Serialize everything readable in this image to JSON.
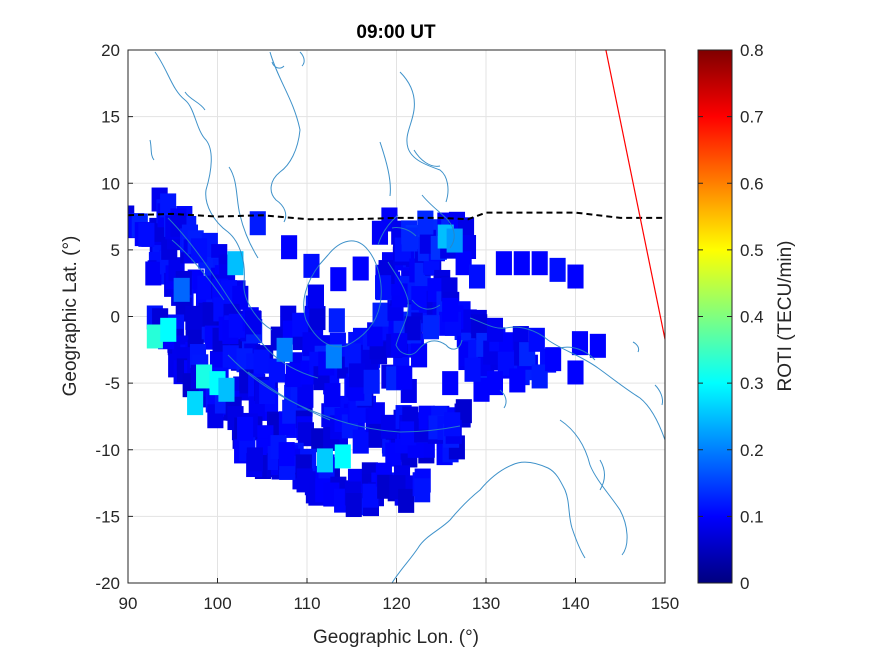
{
  "chart_data": {
    "type": "heatmap",
    "title": "09:00 UT",
    "xlabel": "Geographic Lon. (°)",
    "ylabel": "Geographic Lat. (°)",
    "xlim": [
      90,
      150
    ],
    "ylim": [
      -20,
      20
    ],
    "xticks": [
      "90",
      "100",
      "110",
      "120",
      "130",
      "140",
      "150"
    ],
    "yticks": [
      "20",
      "15",
      "10",
      "5",
      "0",
      "-5",
      "-10",
      "-15",
      "-20"
    ],
    "grid": true,
    "colorbar": {
      "label": "ROTI (TECU/min)",
      "range": [
        0,
        0.8
      ],
      "ticks": [
        "0",
        "0.1",
        "0.2",
        "0.3",
        "0.4",
        "0.5",
        "0.6",
        "0.7",
        "0.8"
      ],
      "colormap": "jet"
    },
    "magnetic_equator": {
      "style": "dashed",
      "color": "#000000",
      "points": [
        [
          90,
          7.6
        ],
        [
          95,
          7.7
        ],
        [
          100,
          7.5
        ],
        [
          105,
          7.6
        ],
        [
          110,
          7.3
        ],
        [
          115,
          7.3
        ],
        [
          120,
          7.4
        ],
        [
          125,
          7.4
        ],
        [
          128,
          7.3
        ],
        [
          130,
          7.8
        ],
        [
          135,
          7.8
        ],
        [
          140,
          7.8
        ],
        [
          145,
          7.4
        ],
        [
          150,
          7.4
        ]
      ]
    },
    "red_line": {
      "color": "#ff0000",
      "points": [
        [
          143.4,
          20
        ],
        [
          150,
          -1.7
        ]
      ]
    },
    "roti_patches": [
      {
        "name": "sumatra-java-band",
        "base": 0.09,
        "path": [
          [
            91.5,
            6.0
          ],
          [
            93,
            5.0
          ],
          [
            95,
            3.5
          ],
          [
            97,
            1.5
          ],
          [
            99,
            -0.5
          ],
          [
            101,
            -2.5
          ],
          [
            103,
            -4.5
          ],
          [
            105,
            -5.8
          ],
          [
            107,
            -6.6
          ],
          [
            110,
            -7.2
          ],
          [
            113,
            -7.8
          ],
          [
            116,
            -8.4
          ],
          [
            119,
            -8.7
          ],
          [
            122,
            -8.8
          ],
          [
            125,
            -8.7
          ],
          [
            127,
            -8.6
          ]
        ],
        "halfwidth": 1.7
      },
      {
        "name": "northern-band",
        "base": 0.1,
        "path": [
          [
            92.5,
            7.5
          ],
          [
            95,
            6.8
          ],
          [
            97,
            5.5
          ],
          [
            99.5,
            3.5
          ],
          [
            101.5,
            1.0
          ],
          [
            103,
            -1.0
          ],
          [
            104.5,
            -2.5
          ]
        ],
        "halfwidth": 1.4
      },
      {
        "name": "southern-band",
        "base": 0.09,
        "path": [
          [
            93.5,
            -1.0
          ],
          [
            95.5,
            -2.5
          ],
          [
            97.5,
            -4.0
          ],
          [
            99.5,
            -5.8
          ],
          [
            101.5,
            -7.5
          ],
          [
            103.5,
            -9.0
          ],
          [
            106,
            -10.5
          ],
          [
            109,
            -11.5
          ],
          [
            112,
            -12.3
          ],
          [
            115,
            -12.8
          ],
          [
            118,
            -13.2
          ],
          [
            121,
            -12.8
          ],
          [
            123,
            -12.7
          ]
        ],
        "halfwidth": 1.3
      },
      {
        "name": "borneo-cluster",
        "base": 0.1,
        "path": [
          [
            107.5,
            -1.0
          ],
          [
            110,
            -2.0
          ],
          [
            112.5,
            -3.0
          ],
          [
            115,
            -3.8
          ],
          [
            118,
            -4.0
          ],
          [
            120,
            -3.0
          ],
          [
            121.5,
            -1.5
          ],
          [
            122,
            1.0
          ],
          [
            120.5,
            3.5
          ],
          [
            119,
            5.5
          ]
        ],
        "halfwidth": 2.6
      },
      {
        "name": "sulawesi-cluster",
        "base": 0.1,
        "path": [
          [
            120.5,
            5.5
          ],
          [
            122,
            4.0
          ],
          [
            124,
            2.5
          ],
          [
            125.5,
            1.0
          ],
          [
            127,
            -1.0
          ],
          [
            129.5,
            -2.5
          ],
          [
            132,
            -3.0
          ],
          [
            134.5,
            -2.5
          ],
          [
            136.5,
            -1.8
          ]
        ],
        "halfwidth": 1.5
      },
      {
        "name": "philippines-cluster",
        "base": 0.11,
        "path": [
          [
            122.5,
            5.2
          ],
          [
            124.5,
            5.8
          ],
          [
            126.5,
            6.5
          ],
          [
            128,
            5.5
          ]
        ],
        "halfwidth": 1.3
      },
      {
        "name": "lesser-sunda-strip",
        "base": 0.1,
        "path": [
          [
            120,
            -7.8
          ],
          [
            123,
            -8.0
          ],
          [
            126,
            -8.2
          ],
          [
            127.5,
            -8.3
          ]
        ],
        "halfwidth": 0.9
      }
    ],
    "roti_cells": [
      [
        104.5,
        7.0,
        0.12
      ],
      [
        108,
        5.2,
        0.1
      ],
      [
        110.5,
        3.8,
        0.11
      ],
      [
        111,
        1.5,
        0.09
      ],
      [
        113.5,
        2.8,
        0.1
      ],
      [
        116,
        3.6,
        0.1
      ],
      [
        118.5,
        2.2,
        0.11
      ],
      [
        132,
        4.0,
        0.1
      ],
      [
        134,
        4.0,
        0.1
      ],
      [
        136,
        4.0,
        0.1
      ],
      [
        138,
        3.5,
        0.11
      ],
      [
        140,
        3.0,
        0.1
      ],
      [
        133.5,
        -4.8,
        0.1
      ],
      [
        136,
        -4.5,
        0.12
      ],
      [
        140,
        -4.2,
        0.1
      ],
      [
        129.5,
        -5.5,
        0.1
      ],
      [
        131,
        -5.0,
        0.1
      ],
      [
        128.5,
        -4.0,
        0.11
      ],
      [
        126,
        -5.0,
        0.1
      ],
      [
        137.5,
        -3.2,
        0.1
      ],
      [
        140.5,
        -2.0,
        0.1
      ],
      [
        142.5,
        -2.2,
        0.1
      ],
      [
        131,
        -1.0,
        0.09
      ],
      [
        126,
        0.5,
        0.1
      ],
      [
        127.5,
        4.0,
        0.1
      ],
      [
        129,
        3.0,
        0.11
      ],
      [
        93.0,
        -1.5,
        0.33
      ],
      [
        94.5,
        -1.0,
        0.3
      ],
      [
        98.5,
        -4.5,
        0.32
      ],
      [
        100,
        -5.0,
        0.3
      ],
      [
        101,
        -5.5,
        0.25
      ],
      [
        97.5,
        -6.5,
        0.27
      ],
      [
        114,
        -10.5,
        0.3
      ],
      [
        112,
        -10.8,
        0.26
      ],
      [
        102,
        4.0,
        0.25
      ],
      [
        125.5,
        6.0,
        0.25
      ],
      [
        126.5,
        5.7,
        0.22
      ],
      [
        113,
        -3.0,
        0.2
      ],
      [
        107.5,
        -2.5,
        0.2
      ],
      [
        96,
        2.0,
        0.18
      ]
    ]
  }
}
